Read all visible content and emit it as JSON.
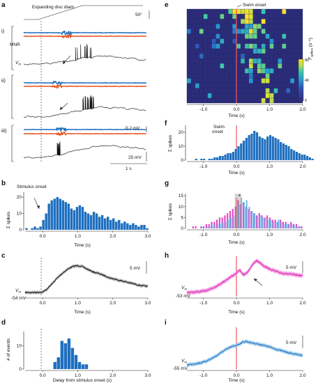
{
  "colors": {
    "blue": "#1f6fbf",
    "orange": "#e8531d",
    "magenta": "#e020b8",
    "lightblue": "#5fb6e8",
    "red": "#e8555a",
    "black": "#111111",
    "gray": "#9a9a9a"
  },
  "panel_a": {
    "label": "a",
    "stimulus_label": "Expanding disc diam.",
    "angle_scale": "50°",
    "mnr_label": "MNR",
    "vm_label": "V",
    "vm_sub": "m",
    "trials": [
      "i)",
      "ii)",
      "iii)"
    ],
    "scale_mv": "0.2 mV",
    "scale_vm": "25 mV",
    "scale_time": "1 s"
  },
  "panel_e": {
    "label": "e",
    "title": "Swim onset",
    "colorbar_label": "F",
    "colorbar_sub": "spikes",
    "colorbar_unit": "(s⁻¹)",
    "colorbar_ticks": [
      "80",
      "40",
      "0"
    ]
  },
  "labels": {
    "b": "b",
    "c": "c",
    "d": "d",
    "f": "f",
    "g": "g",
    "h": "h",
    "i": "i",
    "stimulus_onset": "Stimulus onset",
    "swim_onset": "Swim onset",
    "star": "*",
    "sigma_spikes": "Σ spikes",
    "num_events": "# of events",
    "time_s": "Time (s)",
    "delay": "Delay from stimulus onset (s)",
    "vm": "V",
    "vm_sub": "m",
    "scale_5mv": "5 mV",
    "c_rest": "-54 mV",
    "h_rest": "-53 mV",
    "i_rest": "-55 mV"
  },
  "chart_data": [
    {
      "id": "b",
      "type": "bar",
      "ylabel": "Σ spikes",
      "xlabel": "Time (s)",
      "xlim": [
        -0.5,
        3.0
      ],
      "ylim": [
        0,
        23
      ],
      "xticks": [
        "0.0",
        "1.0",
        "2.0",
        "3.0"
      ],
      "yticks": [
        "0",
        "10",
        "20"
      ],
      "bin_width": 0.08,
      "x_start": -0.5,
      "values": [
        1,
        0,
        1,
        2,
        1,
        2,
        6,
        10,
        16,
        18,
        19,
        20,
        19,
        18,
        17,
        16,
        13,
        12,
        14,
        15,
        14,
        11,
        10,
        9,
        11,
        10,
        8,
        9,
        7,
        8,
        6,
        7,
        5,
        6,
        4,
        5,
        4,
        3,
        4,
        3,
        2,
        3,
        3,
        1
      ]
    },
    {
      "id": "c",
      "type": "line",
      "xlabel": "Time (s)",
      "xlim": [
        -0.5,
        3.0
      ],
      "xticks": [
        "0.0",
        "1.0",
        "2.0",
        "3.0"
      ],
      "scale": "5 mV",
      "rest": "-54 mV",
      "x": [
        -0.5,
        -0.2,
        0,
        0.1,
        0.2,
        0.3,
        0.4,
        0.5,
        0.6,
        0.7,
        0.8,
        0.9,
        1.0,
        1.1,
        1.2,
        1.3,
        1.4,
        1.5,
        1.6,
        1.7,
        1.8,
        1.9,
        2.0,
        2.1,
        2.2,
        2.3,
        2.4,
        2.5,
        2.6,
        2.7,
        2.8,
        2.9,
        3.0
      ],
      "y": [
        0,
        0,
        0.1,
        0.6,
        1.4,
        2.3,
        3.2,
        4.0,
        4.7,
        5.3,
        5.8,
        6.1,
        6.2,
        6.1,
        5.7,
        5.3,
        4.9,
        4.6,
        4.4,
        4.1,
        3.8,
        3.4,
        3.2,
        3.0,
        2.8,
        2.6,
        2.4,
        2.2,
        2.0,
        1.8,
        1.6,
        1.5,
        1.4
      ]
    },
    {
      "id": "d",
      "type": "bar",
      "ylabel": "# of events",
      "xlabel": "Delay from stimulus onset (s)",
      "xlim": [
        -0.5,
        3.0
      ],
      "ylim": [
        0,
        16
      ],
      "xticks": [
        "0.0",
        "1.0",
        "2.0",
        "3.0"
      ],
      "yticks": [
        "0",
        "10"
      ],
      "bin_width": 0.1,
      "x_start": 0.3,
      "values": [
        3,
        5,
        12,
        11,
        13,
        9,
        6,
        3,
        2,
        2
      ]
    },
    {
      "id": "e",
      "type": "heatmap",
      "xlabel": "Time (s)",
      "xlim": [
        -1.5,
        2.0
      ],
      "xticks": [
        "-1.0",
        "0.0",
        "1.0",
        "2.0"
      ],
      "clim": [
        0,
        80
      ],
      "rows": 19,
      "cols": 28
    },
    {
      "id": "f",
      "type": "bar",
      "ylabel": "Σ spikes",
      "xlabel": "Time (s)",
      "xlim": [
        -1.5,
        2.0
      ],
      "ylim": [
        0,
        25
      ],
      "xticks": [
        "-1.0",
        "0.0",
        "1.0",
        "2.0"
      ],
      "yticks": [
        "0",
        "10",
        "20"
      ],
      "bin_width": 0.08,
      "x_start": -1.5,
      "values": [
        0,
        0,
        0,
        1,
        0,
        1,
        1,
        0,
        1,
        1,
        2,
        2,
        3,
        3,
        4,
        5,
        5,
        6,
        8,
        10,
        12,
        14,
        16,
        18,
        19,
        21,
        20,
        17,
        16,
        15,
        17,
        18,
        17,
        16,
        15,
        13,
        12,
        11,
        10,
        8,
        7,
        6,
        5,
        4,
        4,
        3,
        2,
        1
      ]
    },
    {
      "id": "g",
      "type": "bar",
      "ylabel": "Σ spikes",
      "xlabel": "Time (s)",
      "xlim": [
        -1.5,
        2.0
      ],
      "ylim": [
        0,
        16
      ],
      "xticks": [
        "-1.0",
        "0.0",
        "1.0",
        "2.0"
      ],
      "yticks": [
        "0",
        "5",
        "10",
        "15"
      ],
      "bin_width": 0.08,
      "x_start": -1.5,
      "series": [
        {
          "name": "magenta",
          "values": [
            0,
            0,
            1,
            1,
            0,
            1,
            1,
            2,
            2,
            3,
            3,
            4,
            5,
            5,
            6,
            7,
            8,
            9,
            10,
            13,
            11,
            12,
            10,
            9,
            8,
            7,
            6,
            7,
            6,
            5,
            6,
            5,
            4,
            4,
            3,
            4,
            3,
            3,
            2,
            3,
            2,
            2,
            1,
            1
          ]
        },
        {
          "name": "lightblue",
          "values": [
            0,
            0,
            0,
            0,
            0,
            1,
            0,
            1,
            1,
            1,
            2,
            2,
            2,
            3,
            3,
            4,
            5,
            6,
            9,
            11,
            14,
            12,
            13,
            10,
            8,
            7,
            6,
            6,
            5,
            5,
            4,
            4,
            3,
            3,
            4,
            3,
            2,
            2,
            2,
            2,
            1,
            1,
            1,
            0
          ]
        }
      ]
    },
    {
      "id": "h",
      "type": "line",
      "xlabel": "Time (s)",
      "xlim": [
        -1.5,
        2.0
      ],
      "xticks": [
        "-1.0",
        "0.0",
        "1.0",
        "2.0"
      ],
      "scale": "5 mV",
      "rest": "-53 mV",
      "x": [
        -1.5,
        -1.2,
        -1.0,
        -0.8,
        -0.6,
        -0.4,
        -0.2,
        0,
        0.1,
        0.2,
        0.3,
        0.4,
        0.5,
        0.6,
        0.7,
        0.8,
        1.0,
        1.2,
        1.4,
        1.6,
        1.8,
        2.0
      ],
      "y": [
        0,
        0.1,
        0.3,
        0.8,
        1.5,
        2.5,
        3.6,
        4.6,
        5.4,
        4.2,
        4.6,
        5.6,
        6.8,
        7.6,
        7.2,
        6.5,
        5.6,
        5.0,
        4.6,
        4.4,
        4.2,
        4.0
      ]
    },
    {
      "id": "i",
      "type": "line",
      "xlabel": "Time (s)",
      "xlim": [
        -1.5,
        2.0
      ],
      "xticks": [
        "-1.0",
        "0.0",
        "1.0",
        "2.0"
      ],
      "scale": "5 mV",
      "rest": "-55 mV",
      "x": [
        -1.5,
        -1.2,
        -1.0,
        -0.8,
        -0.6,
        -0.4,
        -0.2,
        0,
        0.1,
        0.2,
        0.3,
        0.4,
        0.6,
        0.8,
        1.0,
        1.2,
        1.4,
        1.6,
        1.8,
        2.0
      ],
      "y": [
        0,
        0.3,
        0.6,
        1.2,
        2.0,
        3.0,
        3.8,
        4.3,
        4.6,
        5.0,
        5.1,
        4.9,
        4.6,
        4.3,
        3.9,
        3.4,
        3.0,
        2.6,
        2.3,
        2.1
      ]
    }
  ]
}
